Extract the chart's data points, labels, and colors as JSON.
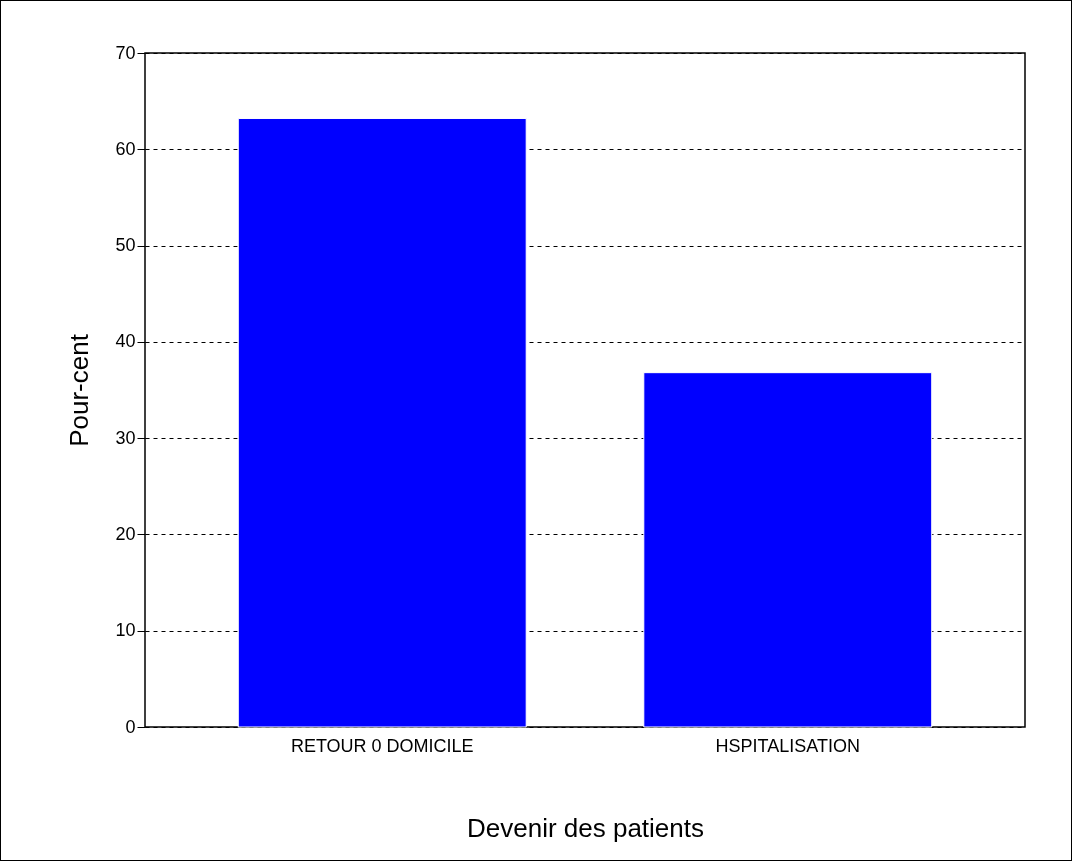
{
  "chart_data": {
    "type": "bar",
    "xlabel": "Devenir des patients",
    "ylabel": "Pour-cent",
    "categories": [
      "RETOUR 0 DOMICILE",
      "HSPITALISATION"
    ],
    "values": [
      63.2,
      36.8
    ],
    "color": "#0000ff",
    "ylim": [
      0,
      70
    ],
    "yticks": [
      0,
      10,
      20,
      30,
      40,
      50,
      60,
      70
    ],
    "grid": "y",
    "line_style": "dashed"
  }
}
